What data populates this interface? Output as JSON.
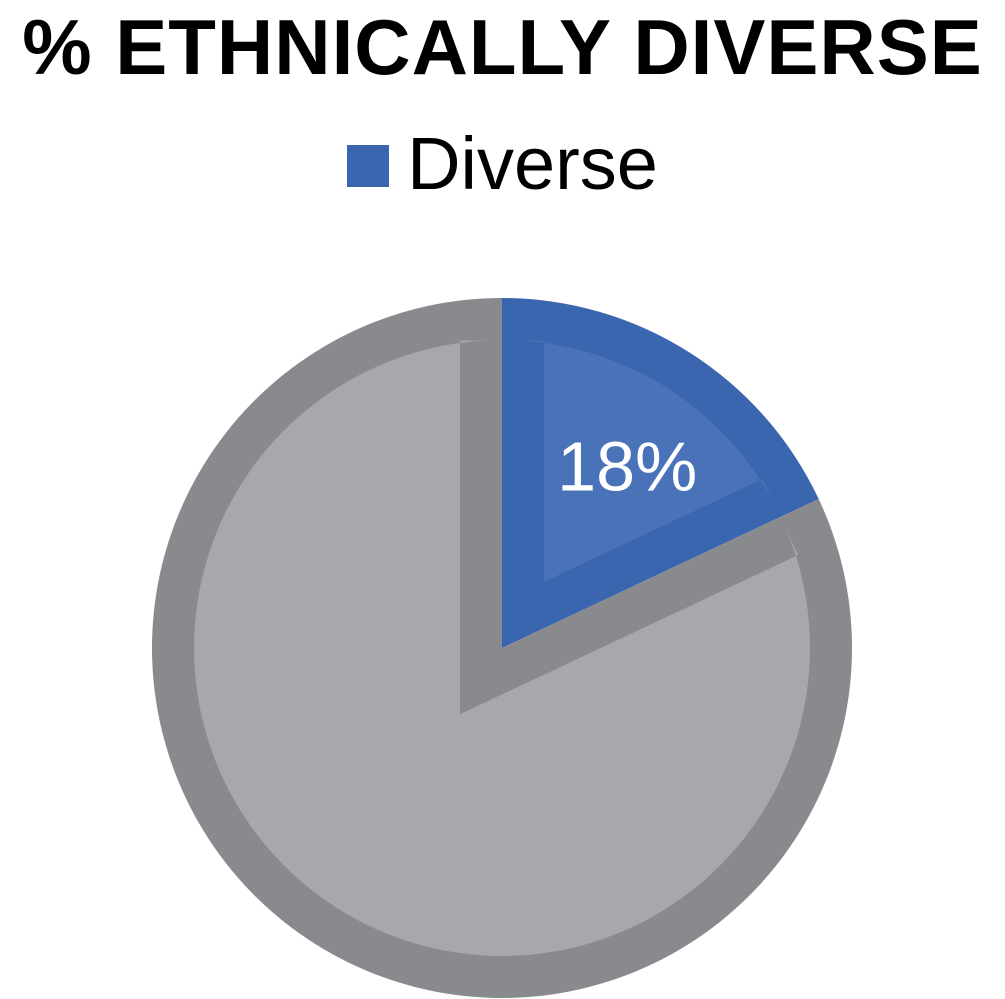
{
  "chart_data": {
    "type": "pie",
    "title": "% ETHNICALLY DIVERSE",
    "legend": {
      "position": "top",
      "entries": [
        {
          "name": "Diverse",
          "color": "#3a66b0"
        }
      ]
    },
    "slices": [
      {
        "name": "Diverse",
        "value": 18,
        "label": "18%",
        "color": "#3a66b0",
        "inner_color": "#4a72b8"
      },
      {
        "name": "",
        "value": 82,
        "label": "",
        "color": "#898a8d",
        "inner_color": "#a7a8ab"
      }
    ],
    "start_angle_deg": 0,
    "direction": "clockwise"
  }
}
